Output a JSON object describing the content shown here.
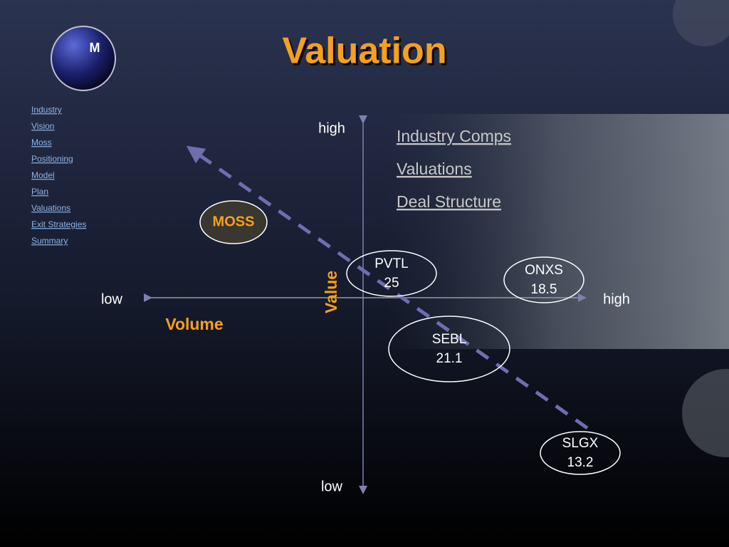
{
  "title": "Valuation",
  "nav": [
    "Industry",
    "Vision",
    "Moss",
    "Positioning",
    "Model",
    "Plan",
    "Valuations",
    "Exit Strategies",
    "Summary"
  ],
  "logo": "M",
  "axes": {
    "y_high": "high",
    "y_low": "low",
    "x_low": "low",
    "x_high": "high",
    "y_label": "Value",
    "x_label": "Volume"
  },
  "links": [
    "Industry Comps",
    "Valuations",
    "Deal Structure"
  ],
  "moss": "MOSS",
  "nodes": [
    {
      "label": "PVTL",
      "value": 25
    },
    {
      "label": "ONXS",
      "value": 18.5
    },
    {
      "label": "SEBL",
      "value": 21.1
    },
    {
      "label": "SLGX",
      "value": 13.2
    }
  ]
}
